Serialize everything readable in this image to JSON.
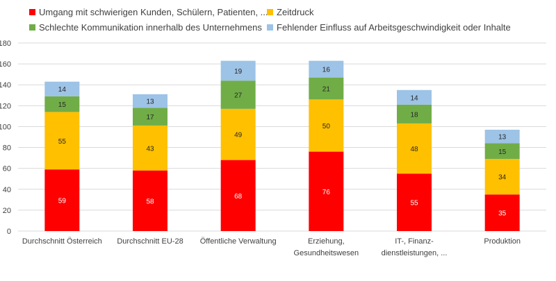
{
  "chart_data": {
    "type": "bar",
    "stacked": true,
    "categories": [
      [
        "Durchschnitt Österreich"
      ],
      [
        "Durchschnitt EU-28"
      ],
      [
        "Öffentliche Verwaltung"
      ],
      [
        "Erziehung,",
        "Gesundheitswesen"
      ],
      [
        "IT-, Finanz-",
        "dienstleistungen, ..."
      ],
      [
        "Produktion"
      ]
    ],
    "series": [
      {
        "name": "Umgang mit schwierigen Kunden, Schülern, Patienten, ...",
        "color": "#ff0000",
        "values": [
          59,
          58,
          68,
          76,
          55,
          35
        ]
      },
      {
        "name": "Zeitdruck",
        "color": "#ffc000",
        "values": [
          55,
          43,
          49,
          50,
          48,
          34
        ]
      },
      {
        "name": "Schlechte Kommunikation innerhalb des Unternehmens",
        "color": "#70ad47",
        "values": [
          15,
          17,
          27,
          21,
          18,
          15
        ]
      },
      {
        "name": "Fehlender Einfluss auf Arbeitsgeschwindigkeit oder Inhalte",
        "color": "#9dc3e6",
        "values": [
          14,
          13,
          19,
          16,
          14,
          13
        ]
      }
    ],
    "ylim": [
      0,
      180
    ],
    "yticks": [
      "0",
      "20",
      "40",
      "60",
      "80",
      "100",
      "120",
      "140",
      "160",
      "180"
    ],
    "grid": true,
    "legend_position": "top"
  }
}
